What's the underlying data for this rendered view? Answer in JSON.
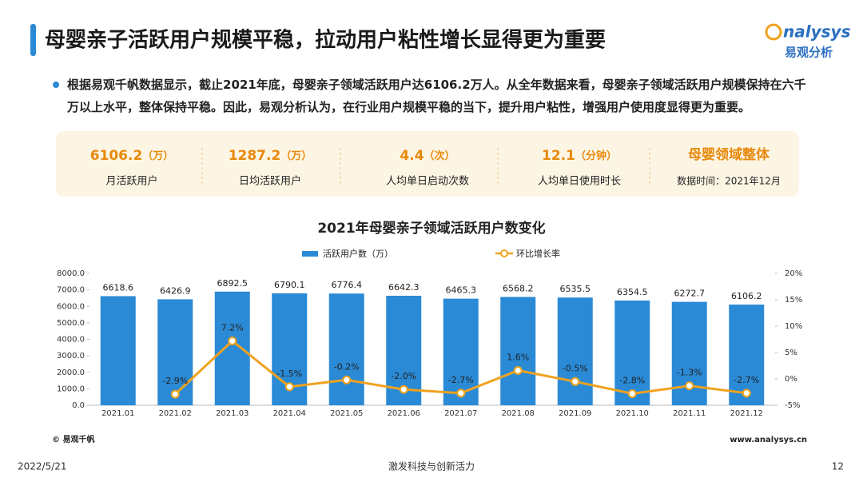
{
  "title": "母婴亲子活跃用户规模平稳，拉动用户粘性增长显得更为重要",
  "logo": {
    "name": "nalysys",
    "sub": "易观分析"
  },
  "bullet": "根据易观千帆数据显示，截止2021年底，母婴亲子领域活跃用户达6106.2万人。从全年数据来看，母婴亲子领域活跃用户规模保持在六千万以上水平，整体保持平稳。因此，易观分析认为，在行业用户规模平稳的当下，提升用户粘性，增强用户使用度显得更为重要。",
  "stats": [
    {
      "value": "6106.2",
      "unit": "（万）",
      "label": "月活跃用户"
    },
    {
      "value": "1287.2",
      "unit": "（万）",
      "label": "日均活跃用户"
    },
    {
      "value": "4.4",
      "unit": "（次）",
      "label": "人均单日启动次数"
    },
    {
      "value": "12.1",
      "unit": "（分钟）",
      "label": "人均单日使用时长"
    }
  ],
  "scope": {
    "title": "母婴领域整体",
    "note": "数据时间：2021年12月"
  },
  "chart_data": {
    "type": "bar",
    "title": "2021年母婴亲子领域活跃用户数变化",
    "categories": [
      "2021.01",
      "2021.02",
      "2021.03",
      "2021.04",
      "2021.05",
      "2021.06",
      "2021.07",
      "2021.08",
      "2021.09",
      "2021.10",
      "2021.11",
      "2021.12"
    ],
    "series": [
      {
        "name": "活跃用户数（万）",
        "color": "#2a8ad6",
        "values": [
          6618.6,
          6426.9,
          6892.5,
          6790.1,
          6776.4,
          6642.3,
          6465.3,
          6568.2,
          6535.5,
          6354.5,
          6272.7,
          6106.2
        ]
      },
      {
        "name": "环比增长率",
        "type": "line",
        "axis": "y2",
        "color": "#f0a21e",
        "values": [
          null,
          -2.9,
          7.2,
          -1.5,
          -0.2,
          -2.0,
          -2.7,
          1.6,
          -0.5,
          -2.8,
          -1.3,
          -2.7
        ],
        "value_labels": [
          null,
          "-2.9%",
          "7.2%",
          "-1.5%",
          "-0.2%",
          "-2.0%",
          "-2.7%",
          "1.6%",
          "-0.5%",
          "-2.8%",
          "-1.3%",
          "-2.7%"
        ]
      }
    ],
    "ylim": [
      0,
      8000
    ],
    "yticks": [
      {
        "value": 0,
        "label": "0.0"
      },
      {
        "value": 1000,
        "label": "1000.0"
      },
      {
        "value": 2000,
        "label": "2000.0"
      },
      {
        "value": 3000,
        "label": "3000.0"
      },
      {
        "value": 4000,
        "label": "4000.0"
      },
      {
        "value": 5000,
        "label": "5000.0"
      },
      {
        "value": 6000,
        "label": "6000.0"
      },
      {
        "value": 7000,
        "label": "7000.0"
      },
      {
        "value": 8000,
        "label": "8000.0"
      }
    ],
    "y2lim": [
      -5,
      20
    ],
    "y2ticks": [
      {
        "value": -5,
        "label": "-5%"
      },
      {
        "value": 0,
        "label": "0%"
      },
      {
        "value": 5,
        "label": "5%"
      },
      {
        "value": 10,
        "label": "10%"
      },
      {
        "value": 15,
        "label": "15%"
      },
      {
        "value": 20,
        "label": "20%"
      }
    ]
  },
  "source": "© 易观千帆",
  "website": "www.analysys.cn",
  "footer": {
    "date": "2022/5/21",
    "slogan": "激发科技与创新活力",
    "page": "12"
  }
}
